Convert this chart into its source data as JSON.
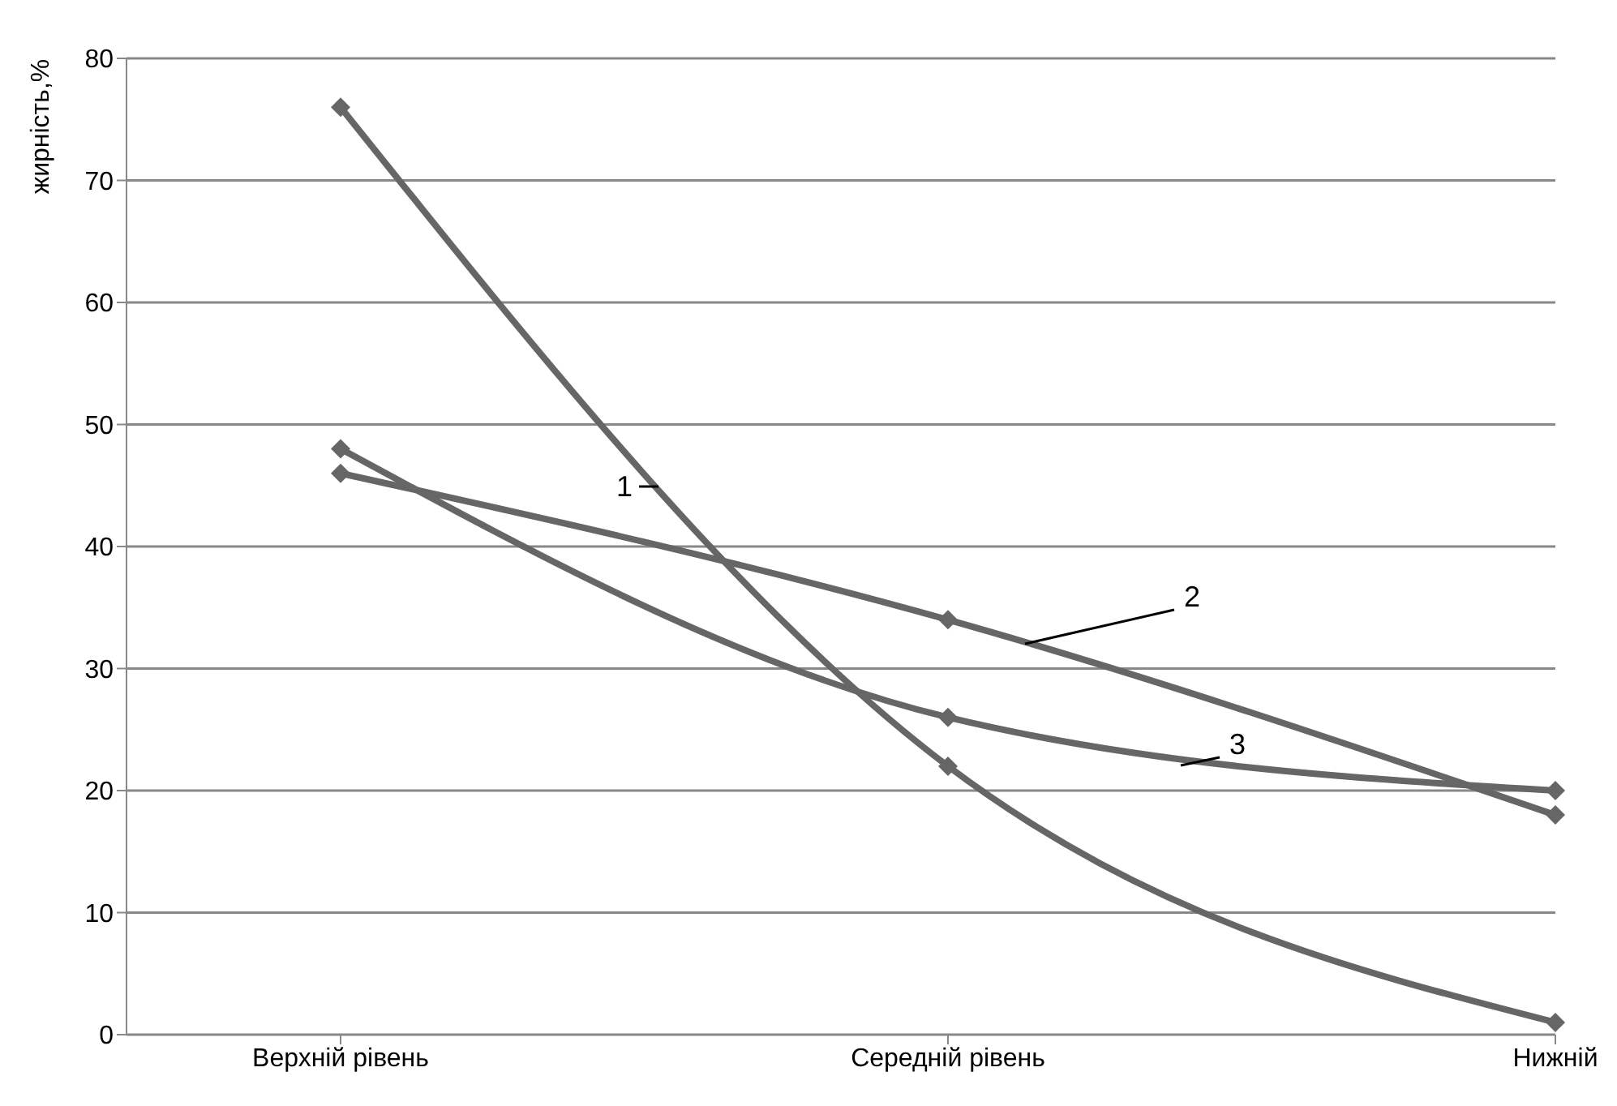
{
  "chart_data": {
    "type": "line",
    "ylabel": "жирність,%",
    "categories": [
      "Верхній рівень",
      "Середній рівень",
      "Нижній"
    ],
    "series": [
      {
        "name": "1",
        "color": "#666666",
        "values": [
          76,
          22,
          1
        ]
      },
      {
        "name": "2",
        "color": "#666666",
        "values": [
          46,
          34,
          18
        ]
      },
      {
        "name": "3",
        "color": "#666666",
        "values": [
          48,
          26,
          20
        ]
      }
    ],
    "ylim": [
      0,
      80
    ],
    "yticks": [
      0,
      10,
      20,
      30,
      40,
      50,
      60,
      70,
      80
    ],
    "grid": "y",
    "legend": false,
    "marker": "diamond",
    "line_style": "solid"
  }
}
